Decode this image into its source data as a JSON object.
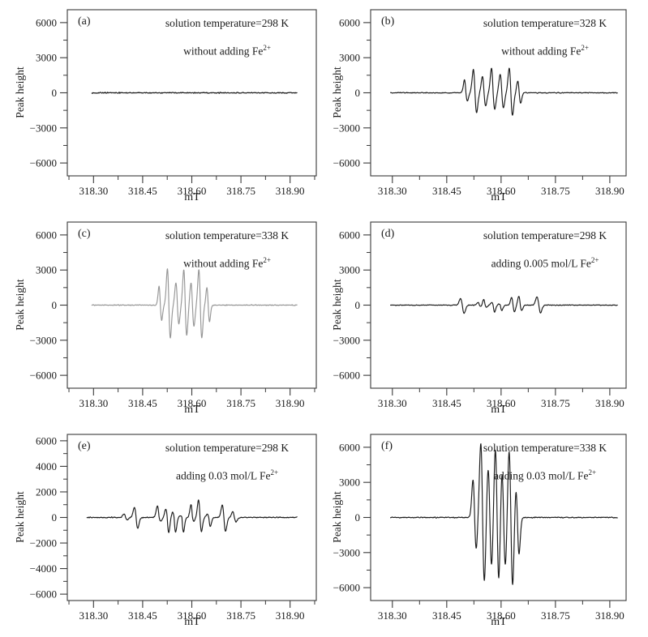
{
  "figure": {
    "background_color": "#ffffff",
    "frame_color": "#3a3a3a",
    "panel_count": 6
  },
  "chart_data": [
    {
      "type": "line",
      "panel_label": "(a)",
      "annotation_line1": "solution temperature=298 K",
      "annotation_line2_text": "without adding Fe",
      "annotation_line2_sup": "2+",
      "xlabel": "mT",
      "ylabel": "Peak height",
      "x_tick_values": [
        318.3,
        318.45,
        318.6,
        318.75,
        318.9
      ],
      "x_minor_ticks": [
        318.225,
        318.375,
        318.525,
        318.675,
        318.825,
        318.975
      ],
      "x_range": [
        318.22,
        318.98
      ],
      "y_tick_values": [
        6000,
        3000,
        0,
        -3000,
        -6000
      ],
      "y_minor_ticks": [
        4500,
        1500,
        -1500,
        -4500
      ],
      "y_range": [
        -7100,
        7100
      ],
      "line_color": "#1b1b1b",
      "noise_amplitude": 80,
      "signal_x_range": [
        318.295,
        318.921
      ],
      "peaks": []
    },
    {
      "type": "line",
      "panel_label": "(b)",
      "annotation_line1": "solution temperature=328 K",
      "annotation_line2_text": "without adding Fe",
      "annotation_line2_sup": "2+",
      "xlabel": "mT",
      "ylabel": "Peak height",
      "x_tick_values": [
        318.3,
        318.45,
        318.6,
        318.75,
        318.9
      ],
      "x_minor_ticks": [
        318.225,
        318.375,
        318.525,
        318.675,
        318.825,
        318.975
      ],
      "x_range": [
        318.24,
        318.945
      ],
      "y_tick_values": [
        6000,
        3000,
        0,
        -3000,
        -6000
      ],
      "y_minor_ticks": [
        4500,
        1500,
        -1500,
        -4500
      ],
      "y_range": [
        -7100,
        7100
      ],
      "line_color": "#1b1b1b",
      "noise_amplitude": 65,
      "signal_x_range": [
        318.295,
        318.921
      ],
      "peaks": [
        [
          318.503,
          1100,
          700,
          0.004
        ],
        [
          318.528,
          2000,
          1700,
          0.0045
        ],
        [
          318.553,
          1400,
          1100,
          0.0045
        ],
        [
          318.578,
          2100,
          1400,
          0.0045
        ],
        [
          318.602,
          1600,
          1300,
          0.0045
        ],
        [
          318.627,
          2100,
          1900,
          0.0045
        ],
        [
          318.65,
          1000,
          900,
          0.004
        ]
      ]
    },
    {
      "type": "line",
      "panel_label": "(c)",
      "annotation_line1": "solution temperature=338 K",
      "annotation_line2_text": "without adding Fe",
      "annotation_line2_sup": "2+",
      "xlabel": "mT",
      "ylabel": "Peak height",
      "x_tick_values": [
        318.3,
        318.45,
        318.6,
        318.75,
        318.9
      ],
      "x_minor_ticks": [
        318.225,
        318.375,
        318.525,
        318.675,
        318.825,
        318.975
      ],
      "x_range": [
        318.22,
        318.98
      ],
      "y_tick_values": [
        6000,
        3000,
        0,
        -3000,
        -6000
      ],
      "y_minor_ticks": [
        4500,
        1500,
        -1500,
        -4500
      ],
      "y_range": [
        -7100,
        7100
      ],
      "line_color": "#969696",
      "noise_amplitude": 65,
      "signal_x_range": [
        318.295,
        318.921
      ],
      "peaks": [
        [
          318.504,
          1600,
          1300,
          0.004
        ],
        [
          318.53,
          3100,
          2800,
          0.0045
        ],
        [
          318.556,
          1900,
          1600,
          0.0045
        ],
        [
          318.58,
          3000,
          2600,
          0.0045
        ],
        [
          318.602,
          1900,
          1800,
          0.0045
        ],
        [
          318.626,
          3000,
          2800,
          0.0045
        ],
        [
          318.65,
          1500,
          1400,
          0.004
        ]
      ]
    },
    {
      "type": "line",
      "panel_label": "(d)",
      "annotation_line1": "solution temperature=298 K",
      "annotation_line2_text": "adding 0.005 mol/L Fe",
      "annotation_line2_sup": "2+",
      "xlabel": "mT",
      "ylabel": "Peak height",
      "x_tick_values": [
        318.3,
        318.45,
        318.6,
        318.75,
        318.9
      ],
      "x_minor_ticks": [
        318.225,
        318.375,
        318.525,
        318.675,
        318.825,
        318.975
      ],
      "x_range": [
        318.24,
        318.945
      ],
      "y_tick_values": [
        6000,
        3000,
        0,
        -3000,
        -6000
      ],
      "y_minor_ticks": [
        4500,
        1500,
        -1500,
        -4500
      ],
      "y_range": [
        -7100,
        7100
      ],
      "line_color": "#1b1b1b",
      "noise_amplitude": 60,
      "signal_x_range": [
        318.295,
        318.921
      ],
      "peaks": [
        [
          318.493,
          560,
          700,
          0.005
        ],
        [
          318.54,
          250,
          120,
          0.004
        ],
        [
          318.556,
          470,
          190,
          0.004
        ],
        [
          318.578,
          230,
          580,
          0.004
        ],
        [
          318.598,
          100,
          470,
          0.004
        ],
        [
          318.633,
          650,
          580,
          0.004
        ],
        [
          318.653,
          770,
          470,
          0.004
        ],
        [
          318.704,
          700,
          650,
          0.005
        ]
      ]
    },
    {
      "type": "line",
      "panel_label": "(e)",
      "annotation_line1": "solution temperature=298 K",
      "annotation_line2_text": "adding 0.03 mol/L Fe",
      "annotation_line2_sup": "2+",
      "xlabel": "mT",
      "ylabel": "Peak height",
      "x_tick_values": [
        318.3,
        318.45,
        318.6,
        318.75,
        318.9
      ],
      "x_minor_ticks": [
        318.225,
        318.375,
        318.525,
        318.675,
        318.825,
        318.975
      ],
      "x_range": [
        318.22,
        318.98
      ],
      "y_tick_values": [
        6000,
        4000,
        2000,
        0,
        -2000,
        -4000,
        -6000
      ],
      "y_minor_ticks": [
        5000,
        3000,
        1000,
        -1000,
        -3000,
        -5000
      ],
      "y_range": [
        -6500,
        6500
      ],
      "line_color": "#1b1b1b",
      "noise_amplitude": 70,
      "signal_x_range": [
        318.28,
        318.921
      ],
      "peaks": [
        [
          318.398,
          260,
          160,
          0.005
        ],
        [
          318.43,
          800,
          860,
          0.005
        ],
        [
          318.5,
          900,
          300,
          0.005
        ],
        [
          318.525,
          650,
          1200,
          0.0045
        ],
        [
          318.546,
          420,
          1150,
          0.0045
        ],
        [
          318.57,
          150,
          1150,
          0.0045
        ],
        [
          318.602,
          1000,
          300,
          0.0045
        ],
        [
          318.625,
          1400,
          1100,
          0.0045
        ],
        [
          318.652,
          250,
          700,
          0.0045
        ],
        [
          318.698,
          950,
          1100,
          0.005
        ],
        [
          318.73,
          450,
          350,
          0.005
        ]
      ]
    },
    {
      "type": "line",
      "panel_label": "(f)",
      "annotation_line1": "solution temperature=338 K",
      "annotation_line2_text": "adding 0.03 mol/L Fe",
      "annotation_line2_sup": "2+",
      "xlabel": "mT",
      "ylabel": "Peak height",
      "x_tick_values": [
        318.3,
        318.45,
        318.6,
        318.75,
        318.9
      ],
      "x_minor_ticks": [
        318.225,
        318.375,
        318.525,
        318.675,
        318.825,
        318.975
      ],
      "x_range": [
        318.24,
        318.945
      ],
      "y_tick_values": [
        6000,
        3000,
        0,
        -3000,
        -6000
      ],
      "y_minor_ticks": [
        4500,
        1500,
        -1500,
        -4500
      ],
      "y_range": [
        -7100,
        7100
      ],
      "line_color": "#1b1b1b",
      "noise_amplitude": 75,
      "signal_x_range": [
        318.295,
        318.921
      ],
      "peaks": [
        [
          318.527,
          3200,
          2700,
          0.0045
        ],
        [
          318.549,
          6300,
          5600,
          0.005
        ],
        [
          318.569,
          4300,
          4300,
          0.005
        ],
        [
          318.589,
          6000,
          5700,
          0.005
        ],
        [
          318.607,
          4300,
          4300,
          0.005
        ],
        [
          318.627,
          5800,
          5900,
          0.005
        ],
        [
          318.645,
          2700,
          3100,
          0.0045
        ]
      ]
    }
  ]
}
